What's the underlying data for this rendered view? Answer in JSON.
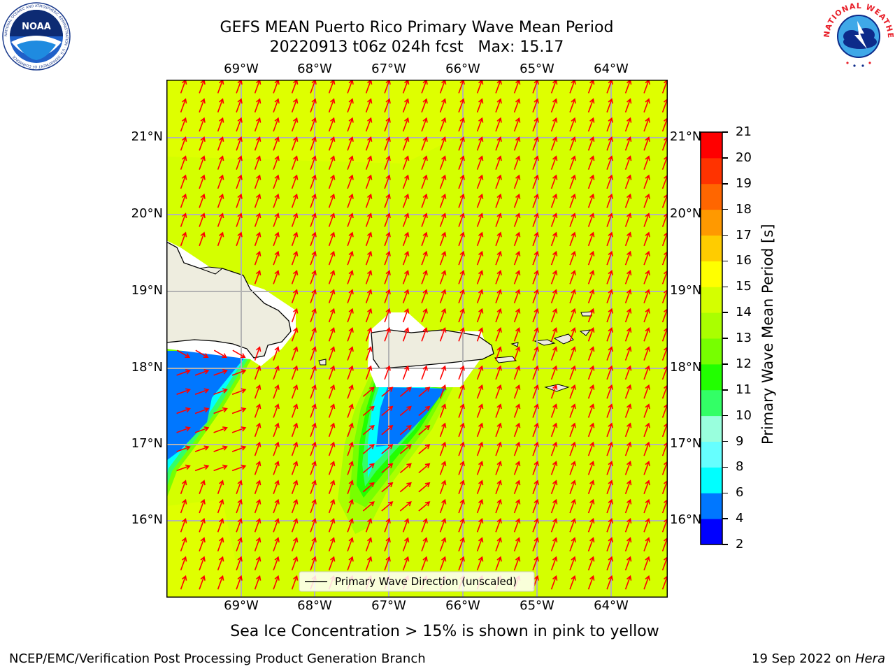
{
  "title": {
    "line1": "GEFS MEAN Puerto Rico Primary Wave Mean Period",
    "line2": "20220913 t06z 024h fcst   Max: 15.17"
  },
  "logos": {
    "left": "NOAA",
    "left_ring": "NATIONAL OCEANIC AND ATMOSPHERIC ADMINISTRATION · U.S. DEPARTMENT OF COMMERCE",
    "right_ring": "NATIONAL WEATHER SERVICE"
  },
  "map": {
    "lon_ticks": [
      "69°W",
      "68°W",
      "67°W",
      "66°W",
      "65°W",
      "64°W"
    ],
    "lat_ticks": [
      "21°N",
      "20°N",
      "19°N",
      "18°N",
      "17°N",
      "16°N"
    ],
    "background_color": "#d4ff00",
    "land_color": "#eeeddf",
    "arrow_color": "#ff0000",
    "legend_label": "Primary Wave Direction (unscaled)"
  },
  "colorbar": {
    "title": "Primary Wave Mean Period [s]",
    "levels": [
      "2",
      "4",
      "6",
      "8",
      "9",
      "10",
      "11",
      "12",
      "13",
      "14",
      "15",
      "16",
      "17",
      "18",
      "19",
      "20",
      "21"
    ],
    "colors": [
      "#0000ff",
      "#0077ff",
      "#00ffff",
      "#66ffff",
      "#99ffdd",
      "#33ff66",
      "#22ff00",
      "#77ff00",
      "#aaff00",
      "#d4ff00",
      "#ffff00",
      "#ffcc00",
      "#ff9900",
      "#ff6600",
      "#ff3300",
      "#ff0000"
    ]
  },
  "caption": "Sea Ice Concentration > 15% is shown in pink to yellow",
  "footer": {
    "left": "NCEP/EMC/Verification Post Processing Product Generation Branch",
    "right_date": "19 Sep 2022 on ",
    "right_host": "Hera"
  }
}
